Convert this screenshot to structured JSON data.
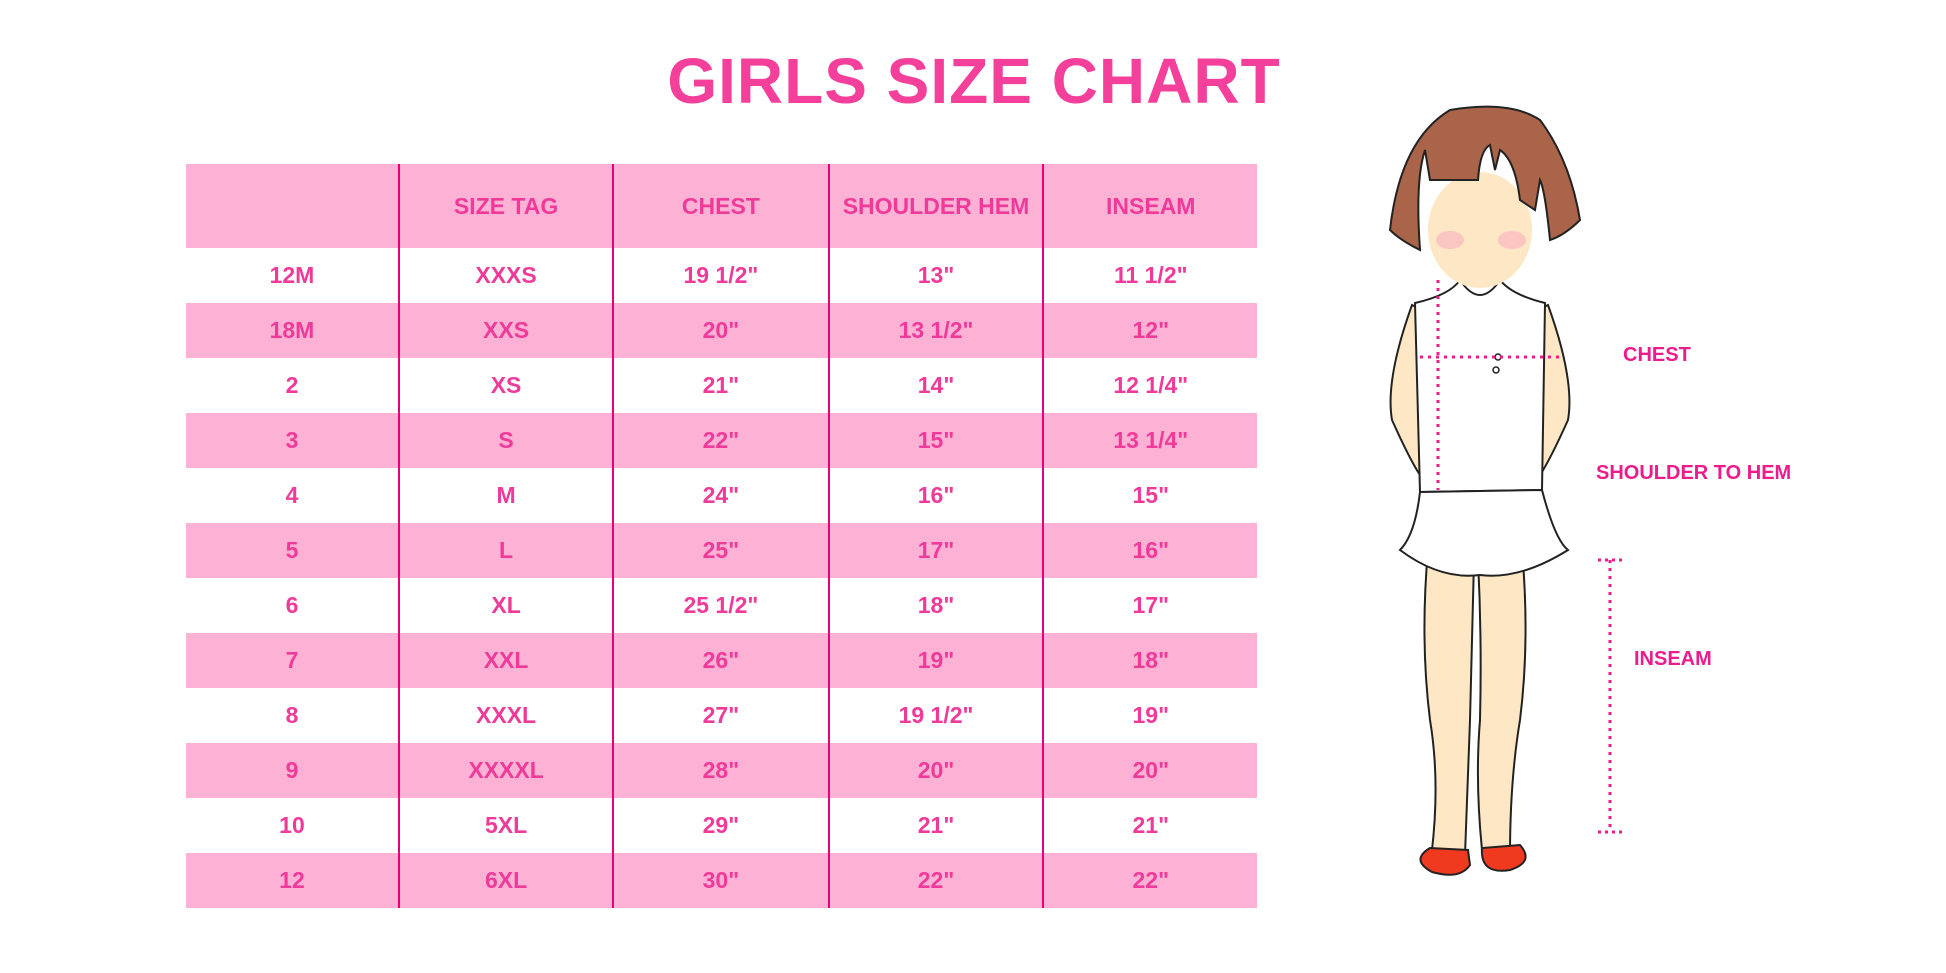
{
  "title": "GIRLS SIZE CHART",
  "table": {
    "headers": [
      "",
      "SIZE TAG",
      "CHEST",
      "SHOULDER HEM",
      "INSEAM"
    ],
    "rows": [
      [
        "12M",
        "XXXS",
        "19 1/2\"",
        "13\"",
        "11 1/2\""
      ],
      [
        "18M",
        "XXS",
        "20\"",
        "13 1/2\"",
        "12\""
      ],
      [
        "2",
        "XS",
        "21\"",
        "14\"",
        "12 1/4\""
      ],
      [
        "3",
        "S",
        "22\"",
        "15\"",
        "13 1/4\""
      ],
      [
        "4",
        "M",
        "24\"",
        "16\"",
        "15\""
      ],
      [
        "5",
        "L",
        "25\"",
        "17\"",
        "16\""
      ],
      [
        "6",
        "XL",
        "25 1/2\"",
        "18\"",
        "17\""
      ],
      [
        "7",
        "XXL",
        "26\"",
        "19\"",
        "18\""
      ],
      [
        "8",
        "XXXL",
        "27\"",
        "19 1/2\"",
        "19\""
      ],
      [
        "9",
        "XXXXL",
        "28\"",
        "20\"",
        "20\""
      ],
      [
        "10",
        "5XL",
        "29\"",
        "21\"",
        "21\""
      ],
      [
        "12",
        "6XL",
        "30\"",
        "22\"",
        "22\""
      ]
    ]
  },
  "illustration": {
    "labels": {
      "chest": "CHEST",
      "shoulder_to_hem": "SHOULDER TO HEM",
      "inseam": "INSEAM"
    }
  },
  "colors": {
    "title": "#f43f9b",
    "row_fill": "#fdb1d5",
    "text": "#f03a9a",
    "divider": "#e6007e",
    "measure": "#ec1c8c"
  }
}
